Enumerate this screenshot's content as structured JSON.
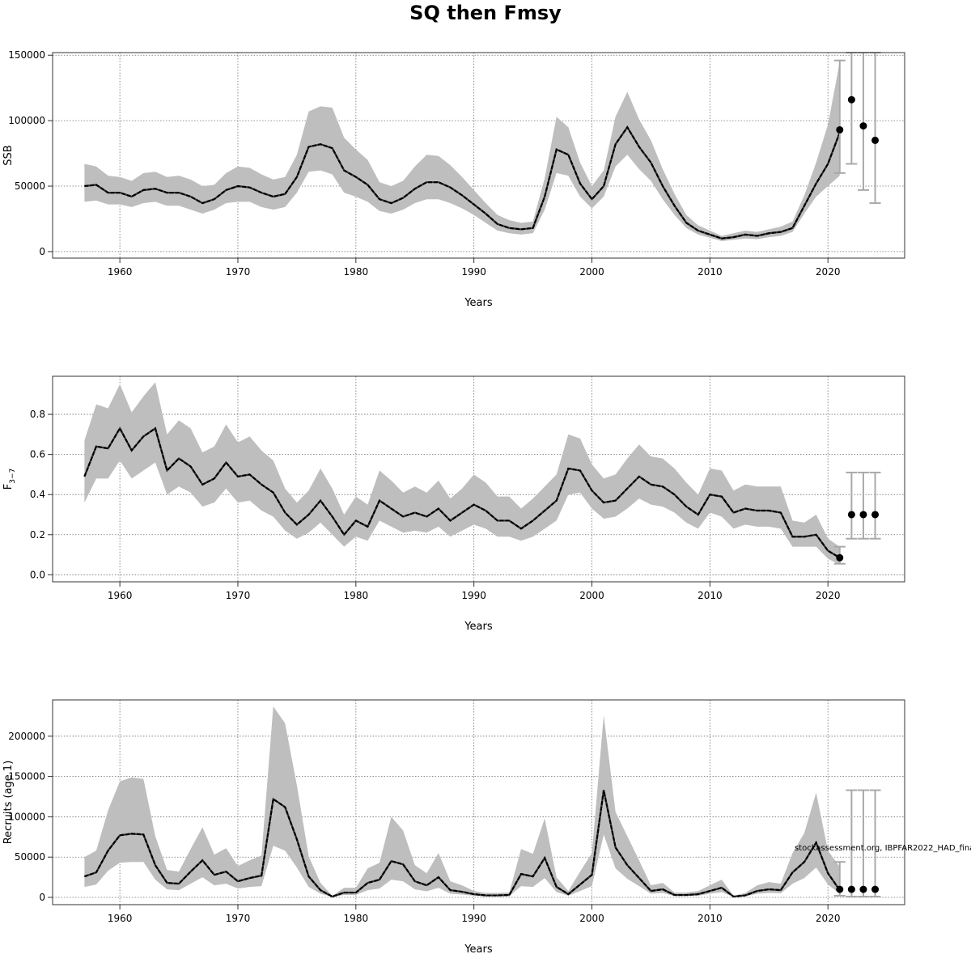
{
  "figure_title": "SQ then Fmsy",
  "watermark": "stockassessment.org, IBPFAR2022_HAD_fina",
  "colors": {
    "band": "#bebebe",
    "line": "#000000",
    "whisker": "#a9a9a9",
    "grid": "#6e6e6e",
    "frame": "#333333"
  },
  "chart_data": [
    {
      "type": "line",
      "panel": "ssb",
      "title": "",
      "xlabel": "Years",
      "ylabel": "SSB",
      "ylabel_sub": "",
      "xlim": [
        1954.3,
        2026.5
      ],
      "ylim": [
        -5000,
        152000
      ],
      "xticks": [
        1960,
        1970,
        1980,
        1990,
        2000,
        2010,
        2020
      ],
      "yticks": [
        0,
        50000,
        100000,
        150000
      ],
      "grid": true,
      "series": [
        {
          "x": [
            1957,
            1958,
            1959,
            1960,
            1961,
            1962,
            1963,
            1964,
            1965,
            1966,
            1967,
            1968,
            1969,
            1970,
            1971,
            1972,
            1973,
            1974,
            1975,
            1976,
            1977,
            1978,
            1979,
            1980,
            1981,
            1982,
            1983,
            1984,
            1985,
            1986,
            1987,
            1988,
            1989,
            1990,
            1991,
            1992,
            1993,
            1994,
            1995,
            1996,
            1997,
            1998,
            1999,
            2000,
            2001,
            2002,
            2003,
            2004,
            2005,
            2006,
            2007,
            2008,
            2009,
            2010,
            2011,
            2012,
            2013,
            2014,
            2015,
            2016,
            2017,
            2018,
            2019,
            2020,
            2021
          ],
          "estimate": [
            50000,
            51000,
            45000,
            45000,
            42000,
            47000,
            48000,
            45000,
            45000,
            42000,
            37000,
            40000,
            47000,
            50000,
            49000,
            45000,
            42000,
            44000,
            57000,
            80000,
            82000,
            79000,
            62000,
            57000,
            51000,
            40000,
            37000,
            41000,
            48000,
            53000,
            53000,
            49000,
            43000,
            36000,
            29000,
            21000,
            18000,
            17000,
            18000,
            42000,
            78000,
            74000,
            52000,
            40000,
            50000,
            82000,
            95000,
            80000,
            68000,
            50000,
            35000,
            22000,
            16000,
            13000,
            10000,
            11000,
            13000,
            12000,
            14000,
            15000,
            18000,
            35000,
            52000,
            67000,
            91000
          ],
          "lower": [
            38000,
            39000,
            36000,
            36000,
            34000,
            37000,
            38000,
            35000,
            35000,
            32000,
            29000,
            32000,
            37000,
            38000,
            38000,
            34000,
            32000,
            34000,
            45000,
            61000,
            62000,
            59000,
            45000,
            42000,
            38000,
            31000,
            29000,
            32000,
            37000,
            40000,
            40000,
            37000,
            33000,
            28000,
            22000,
            16000,
            14000,
            13000,
            14000,
            32000,
            60000,
            58000,
            42000,
            33000,
            42000,
            65000,
            74000,
            63000,
            54000,
            40000,
            28000,
            18000,
            13000,
            10500,
            8000,
            9000,
            10000,
            9500,
            11000,
            12000,
            15000,
            29000,
            42000,
            50000,
            58000
          ],
          "upper": [
            67000,
            65000,
            58000,
            57000,
            54000,
            60000,
            61000,
            57000,
            58000,
            55000,
            50000,
            51000,
            60000,
            65000,
            64000,
            59000,
            55000,
            57000,
            74000,
            107000,
            111000,
            110000,
            87000,
            78000,
            70000,
            53000,
            50000,
            54000,
            65000,
            74000,
            73000,
            66000,
            57000,
            47000,
            37000,
            28000,
            24000,
            22000,
            23000,
            56000,
            103000,
            95000,
            68000,
            50000,
            62000,
            103000,
            122000,
            101000,
            85000,
            63000,
            44000,
            28000,
            20000,
            16000,
            12000,
            14000,
            16000,
            15000,
            17000,
            19000,
            23000,
            43000,
            68000,
            97000,
            145000
          ]
        }
      ],
      "projection": {
        "x": [
          2021,
          2022,
          2023,
          2024
        ],
        "y": [
          93000,
          116000,
          96000,
          85000
        ],
        "lower": [
          60000,
          67000,
          47000,
          37000
        ],
        "upper": [
          146000,
          160000,
          160000,
          160000
        ]
      }
    },
    {
      "type": "line",
      "panel": "fbar",
      "title": "",
      "xlabel": "Years",
      "ylabel": "F",
      "ylabel_sub": "3−7",
      "xlim": [
        1954.3,
        2026.5
      ],
      "ylim": [
        -0.035,
        0.99
      ],
      "xticks": [
        1960,
        1970,
        1980,
        1990,
        2000,
        2010,
        2020
      ],
      "yticks": [
        0.0,
        0.2,
        0.4,
        0.6,
        0.8
      ],
      "ytick_labels": [
        "0.0",
        "0.2",
        "0.4",
        "0.6",
        "0.8"
      ],
      "grid": true,
      "series": [
        {
          "x": [
            1957,
            1958,
            1959,
            1960,
            1961,
            1962,
            1963,
            1964,
            1965,
            1966,
            1967,
            1968,
            1969,
            1970,
            1971,
            1972,
            1973,
            1974,
            1975,
            1976,
            1977,
            1978,
            1979,
            1980,
            1981,
            1982,
            1983,
            1984,
            1985,
            1986,
            1987,
            1988,
            1989,
            1990,
            1991,
            1992,
            1993,
            1994,
            1995,
            1996,
            1997,
            1998,
            1999,
            2000,
            2001,
            2002,
            2003,
            2004,
            2005,
            2006,
            2007,
            2008,
            2009,
            2010,
            2011,
            2012,
            2013,
            2014,
            2015,
            2016,
            2017,
            2018,
            2019,
            2020,
            2021
          ],
          "estimate": [
            0.49,
            0.64,
            0.63,
            0.73,
            0.62,
            0.69,
            0.73,
            0.52,
            0.58,
            0.54,
            0.45,
            0.48,
            0.56,
            0.49,
            0.5,
            0.45,
            0.41,
            0.31,
            0.25,
            0.3,
            0.37,
            0.29,
            0.2,
            0.27,
            0.24,
            0.37,
            0.33,
            0.29,
            0.31,
            0.29,
            0.33,
            0.27,
            0.31,
            0.35,
            0.32,
            0.27,
            0.27,
            0.23,
            0.27,
            0.32,
            0.37,
            0.53,
            0.52,
            0.42,
            0.36,
            0.37,
            0.43,
            0.49,
            0.45,
            0.44,
            0.4,
            0.34,
            0.3,
            0.4,
            0.39,
            0.31,
            0.33,
            0.32,
            0.32,
            0.31,
            0.19,
            0.19,
            0.2,
            0.12,
            0.085
          ],
          "lower": [
            0.36,
            0.48,
            0.48,
            0.57,
            0.48,
            0.52,
            0.56,
            0.4,
            0.44,
            0.41,
            0.34,
            0.36,
            0.43,
            0.36,
            0.37,
            0.32,
            0.29,
            0.22,
            0.18,
            0.21,
            0.26,
            0.2,
            0.14,
            0.19,
            0.17,
            0.27,
            0.24,
            0.21,
            0.22,
            0.21,
            0.24,
            0.19,
            0.22,
            0.25,
            0.23,
            0.19,
            0.19,
            0.17,
            0.19,
            0.23,
            0.27,
            0.4,
            0.41,
            0.33,
            0.28,
            0.29,
            0.33,
            0.38,
            0.35,
            0.34,
            0.31,
            0.26,
            0.23,
            0.31,
            0.29,
            0.23,
            0.25,
            0.24,
            0.24,
            0.23,
            0.14,
            0.14,
            0.14,
            0.08,
            0.05
          ],
          "upper": [
            0.67,
            0.85,
            0.83,
            0.95,
            0.81,
            0.89,
            0.96,
            0.7,
            0.77,
            0.73,
            0.61,
            0.64,
            0.75,
            0.66,
            0.69,
            0.62,
            0.57,
            0.43,
            0.36,
            0.42,
            0.53,
            0.43,
            0.3,
            0.39,
            0.35,
            0.52,
            0.47,
            0.41,
            0.44,
            0.41,
            0.47,
            0.38,
            0.43,
            0.5,
            0.46,
            0.39,
            0.39,
            0.33,
            0.38,
            0.44,
            0.5,
            0.7,
            0.68,
            0.55,
            0.48,
            0.5,
            0.58,
            0.65,
            0.59,
            0.58,
            0.53,
            0.46,
            0.4,
            0.53,
            0.52,
            0.42,
            0.45,
            0.44,
            0.44,
            0.44,
            0.27,
            0.26,
            0.3,
            0.18,
            0.14
          ]
        }
      ],
      "projection": {
        "x": [
          2021,
          2022,
          2023,
          2024
        ],
        "y": [
          0.085,
          0.3,
          0.3,
          0.3
        ],
        "lower": [
          0.055,
          0.18,
          0.18,
          0.18
        ],
        "upper": [
          0.14,
          0.51,
          0.51,
          0.51
        ]
      }
    },
    {
      "type": "line",
      "panel": "recruits",
      "title": "",
      "xlabel": "Years",
      "ylabel": "Recruits (age 1)",
      "ylabel_sub": "",
      "xlim": [
        1954.3,
        2026.5
      ],
      "ylim": [
        -9000,
        245000
      ],
      "xticks": [
        1960,
        1970,
        1980,
        1990,
        2000,
        2010,
        2020
      ],
      "yticks": [
        0,
        50000,
        100000,
        150000,
        200000
      ],
      "grid": true,
      "series": [
        {
          "x": [
            1957,
            1958,
            1959,
            1960,
            1961,
            1962,
            1963,
            1964,
            1965,
            1966,
            1967,
            1968,
            1969,
            1970,
            1971,
            1972,
            1973,
            1974,
            1975,
            1976,
            1977,
            1978,
            1979,
            1980,
            1981,
            1982,
            1983,
            1984,
            1985,
            1986,
            1987,
            1988,
            1989,
            1990,
            1991,
            1992,
            1993,
            1994,
            1995,
            1996,
            1997,
            1998,
            1999,
            2000,
            2001,
            2002,
            2003,
            2004,
            2005,
            2006,
            2007,
            2008,
            2009,
            2010,
            2011,
            2012,
            2013,
            2014,
            2015,
            2016,
            2017,
            2018,
            2019,
            2020,
            2021
          ],
          "estimate": [
            26000,
            31000,
            58000,
            77000,
            79000,
            78000,
            40000,
            18000,
            17000,
            32000,
            46000,
            28000,
            32000,
            20000,
            24000,
            27000,
            122000,
            112000,
            72000,
            26000,
            9000,
            1000,
            6000,
            6000,
            18000,
            22000,
            45000,
            41000,
            20000,
            15000,
            25000,
            9000,
            7000,
            4000,
            2500,
            2500,
            3000,
            29000,
            26000,
            49000,
            13000,
            4000,
            16000,
            28000,
            133000,
            62000,
            40000,
            24000,
            8000,
            10000,
            3000,
            3000,
            4000,
            8000,
            12000,
            1000,
            2500,
            8000,
            10000,
            9000,
            31000,
            44000,
            68000,
            30000,
            9000
          ],
          "lower": [
            13000,
            16000,
            33000,
            43000,
            44000,
            44000,
            22000,
            10000,
            9000,
            17000,
            25000,
            15000,
            17000,
            11000,
            13000,
            14000,
            64000,
            58000,
            37000,
            13000,
            4500,
            500,
            3000,
            3000,
            9000,
            11000,
            22000,
            20000,
            10000,
            7500,
            12000,
            4500,
            3500,
            2000,
            1200,
            1200,
            1500,
            14000,
            13000,
            24000,
            6500,
            2000,
            8000,
            14000,
            78000,
            36000,
            23000,
            14000,
            4500,
            5500,
            1500,
            1500,
            2000,
            4500,
            6500,
            500,
            1300,
            4500,
            5500,
            5000,
            17000,
            24000,
            37000,
            16000,
            4500
          ],
          "upper": [
            50000,
            58000,
            108000,
            144000,
            149000,
            147000,
            76000,
            34000,
            32000,
            60000,
            87000,
            53000,
            61000,
            39000,
            46000,
            52000,
            237000,
            216000,
            139000,
            51000,
            18000,
            2000,
            12000,
            12000,
            36000,
            43000,
            100000,
            83000,
            40000,
            30000,
            55000,
            20000,
            15000,
            8000,
            5500,
            5500,
            6000,
            60000,
            54000,
            98000,
            25000,
            8000,
            32000,
            55000,
            226000,
            106000,
            76000,
            46000,
            15000,
            18000,
            6000,
            6000,
            8000,
            15000,
            22000,
            2000,
            5500,
            15000,
            19000,
            17000,
            55000,
            80000,
            130000,
            58000,
            38000
          ]
        }
      ],
      "projection": {
        "x": [
          2021,
          2022,
          2023,
          2024
        ],
        "y": [
          10000,
          10000,
          10000,
          10000
        ],
        "lower": [
          2000,
          1000,
          1000,
          1000
        ],
        "upper": [
          44000,
          133000,
          133000,
          133000
        ]
      }
    }
  ]
}
